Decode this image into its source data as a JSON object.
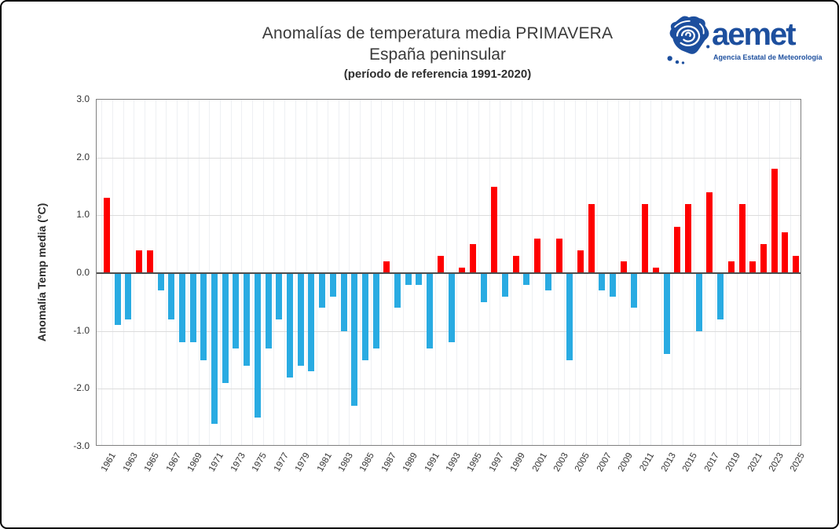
{
  "header": {
    "title_line1": "Anomalías de temperatura media PRIMAVERA",
    "title_line2": "España peninsular",
    "title_line3": "(período de referencia 1991-2020)"
  },
  "logo": {
    "wordmark": "aemet",
    "tagline": "Agencia Estatal de Meteorología",
    "brand_color": "#1d4f9e"
  },
  "chart_data": {
    "type": "bar",
    "title": "Anomalías de temperatura media PRIMAVERA",
    "subtitle": "España peninsular",
    "reference_note": "(período de referencia 1991-2020)",
    "xlabel": "",
    "ylabel": "Anomalía Temp media (°C)",
    "ylim": [
      -3.0,
      3.0
    ],
    "ytick_values": [
      3,
      2,
      1,
      0,
      -1,
      -2,
      -3
    ],
    "ytick_labels": [
      "3.0",
      "2.0",
      "1.0",
      "0.0",
      "-1.0",
      "-2.0",
      "-3.0"
    ],
    "xtick_labels": [
      "1961",
      "1963",
      "1965",
      "1967",
      "1969",
      "1971",
      "1973",
      "1975",
      "1977",
      "1979",
      "1981",
      "1983",
      "1985",
      "1987",
      "1989",
      "1991",
      "1993",
      "1995",
      "1997",
      "1999",
      "2001",
      "2003",
      "2005",
      "2007",
      "2009",
      "2011",
      "2013",
      "2015",
      "2017",
      "2019",
      "2021",
      "2023",
      "2025"
    ],
    "grid": true,
    "legend": false,
    "positive_color": "#fe0000",
    "negative_color": "#29abe2",
    "years": [
      1961,
      1962,
      1963,
      1964,
      1965,
      1966,
      1967,
      1968,
      1969,
      1970,
      1971,
      1972,
      1973,
      1974,
      1975,
      1976,
      1977,
      1978,
      1979,
      1980,
      1981,
      1982,
      1983,
      1984,
      1985,
      1986,
      1987,
      1988,
      1989,
      1990,
      1991,
      1992,
      1993,
      1994,
      1995,
      1996,
      1997,
      1998,
      1999,
      2000,
      2001,
      2002,
      2003,
      2004,
      2005,
      2006,
      2007,
      2008,
      2009,
      2010,
      2011,
      2012,
      2013,
      2014,
      2015,
      2016,
      2017,
      2018,
      2019,
      2020,
      2021,
      2022,
      2023,
      2024,
      2025
    ],
    "values": [
      1.3,
      -0.9,
      -0.8,
      0.4,
      0.4,
      -0.3,
      -0.8,
      -1.2,
      -1.2,
      -1.5,
      -2.6,
      -1.9,
      -1.3,
      -1.6,
      -2.5,
      -1.3,
      -0.8,
      -1.8,
      -1.6,
      -1.7,
      -0.6,
      -0.4,
      -1.0,
      -2.3,
      -1.5,
      -1.3,
      0.2,
      -0.6,
      -0.2,
      -0.2,
      -1.3,
      0.3,
      -1.2,
      0.1,
      0.5,
      -0.5,
      1.5,
      -0.4,
      0.3,
      -0.2,
      0.6,
      -0.3,
      0.6,
      -1.5,
      0.4,
      1.2,
      -0.3,
      -0.4,
      0.2,
      -0.6,
      1.2,
      0.1,
      -1.4,
      0.8,
      1.2,
      -1.0,
      1.4,
      -0.8,
      0.2,
      1.2,
      0.2,
      0.5,
      1.8,
      0.7,
      0.3
    ]
  }
}
